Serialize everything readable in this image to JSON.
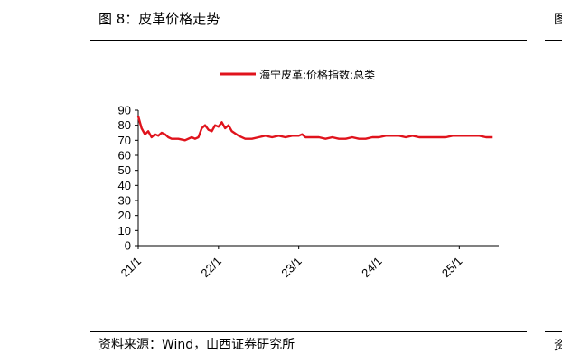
{
  "header": {
    "figure_title": "图 8：皮革价格走势"
  },
  "footer": {
    "source": "资料来源：Wind，山西证券研究所"
  },
  "edge_fragments": {
    "top": "图",
    "bottom": "资"
  },
  "chart_data": {
    "type": "line",
    "title": "",
    "xlabel": "",
    "ylabel": "",
    "ylim": [
      0,
      90
    ],
    "yticks": [
      0,
      10,
      20,
      30,
      40,
      50,
      60,
      70,
      80,
      90
    ],
    "xticks": [
      "21/1",
      "22/1",
      "23/1",
      "24/1",
      "25/1"
    ],
    "x_range": [
      "21/1",
      "25/6"
    ],
    "legend_position": "top-center",
    "grid": false,
    "colors": {
      "series": "#e0131c",
      "axis": "#000000"
    },
    "series": [
      {
        "name": "海宁皮革:价格指数:总类",
        "points": [
          [
            "21/1",
            86
          ],
          [
            "21/1",
            78
          ],
          [
            "21/2",
            74
          ],
          [
            "21/2",
            76
          ],
          [
            "21/3",
            72
          ],
          [
            "21/3",
            74
          ],
          [
            "21/4",
            73
          ],
          [
            "21/4",
            75
          ],
          [
            "21/5",
            74
          ],
          [
            "21/5",
            72
          ],
          [
            "21/6",
            71
          ],
          [
            "21/7",
            71
          ],
          [
            "21/8",
            70
          ],
          [
            "21/9",
            72
          ],
          [
            "21/9",
            71
          ],
          [
            "21/10",
            72
          ],
          [
            "21/10",
            78
          ],
          [
            "21/11",
            80
          ],
          [
            "21/11",
            77
          ],
          [
            "21/12",
            76
          ],
          [
            "21/12",
            80
          ],
          [
            "22/1",
            79
          ],
          [
            "22/1",
            82
          ],
          [
            "22/2",
            78
          ],
          [
            "22/2",
            80
          ],
          [
            "22/3",
            76
          ],
          [
            "22/4",
            73
          ],
          [
            "22/5",
            71
          ],
          [
            "22/6",
            71
          ],
          [
            "22/7",
            72
          ],
          [
            "22/8",
            73
          ],
          [
            "22/9",
            72
          ],
          [
            "22/10",
            73
          ],
          [
            "22/11",
            72
          ],
          [
            "22/12",
            73
          ],
          [
            "23/1",
            73
          ],
          [
            "23/1",
            74
          ],
          [
            "23/2",
            72
          ],
          [
            "23/3",
            72
          ],
          [
            "23/4",
            72
          ],
          [
            "23/5",
            71
          ],
          [
            "23/6",
            72
          ],
          [
            "23/7",
            71
          ],
          [
            "23/8",
            71
          ],
          [
            "23/9",
            72
          ],
          [
            "23/10",
            71
          ],
          [
            "23/11",
            71
          ],
          [
            "23/12",
            72
          ],
          [
            "24/1",
            72
          ],
          [
            "24/2",
            73
          ],
          [
            "24/3",
            73
          ],
          [
            "24/4",
            73
          ],
          [
            "24/5",
            72
          ],
          [
            "24/6",
            73
          ],
          [
            "24/7",
            72
          ],
          [
            "24/8",
            72
          ],
          [
            "24/9",
            72
          ],
          [
            "24/10",
            72
          ],
          [
            "24/11",
            72
          ],
          [
            "24/12",
            73
          ],
          [
            "25/1",
            73
          ],
          [
            "25/2",
            73
          ],
          [
            "25/3",
            73
          ],
          [
            "25/4",
            73
          ],
          [
            "25/5",
            72
          ],
          [
            "25/6",
            72
          ]
        ]
      }
    ]
  }
}
